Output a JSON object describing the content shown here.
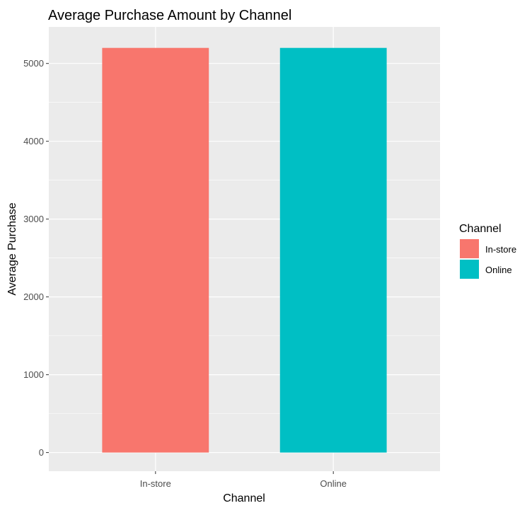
{
  "chart_data": {
    "type": "bar",
    "title": "Average Purchase Amount by Channel",
    "xlabel": "Channel",
    "ylabel": "Average Purchase",
    "categories": [
      "In-store",
      "Online"
    ],
    "values": [
      5200,
      5200
    ],
    "ylim": [
      -240,
      5470
    ],
    "yticks": [
      0,
      1000,
      2000,
      3000,
      4000,
      5000
    ],
    "grid": true,
    "legend": {
      "title": "Channel",
      "position": "right",
      "entries": [
        {
          "label": "In-store",
          "color": "#F8766D"
        },
        {
          "label": "Online",
          "color": "#00BFC4"
        }
      ]
    }
  },
  "colors": {
    "panel_background": "#EBEBEB",
    "grid": "#FFFFFF",
    "bar_instore": "#F8766D",
    "bar_online": "#00BFC4"
  }
}
